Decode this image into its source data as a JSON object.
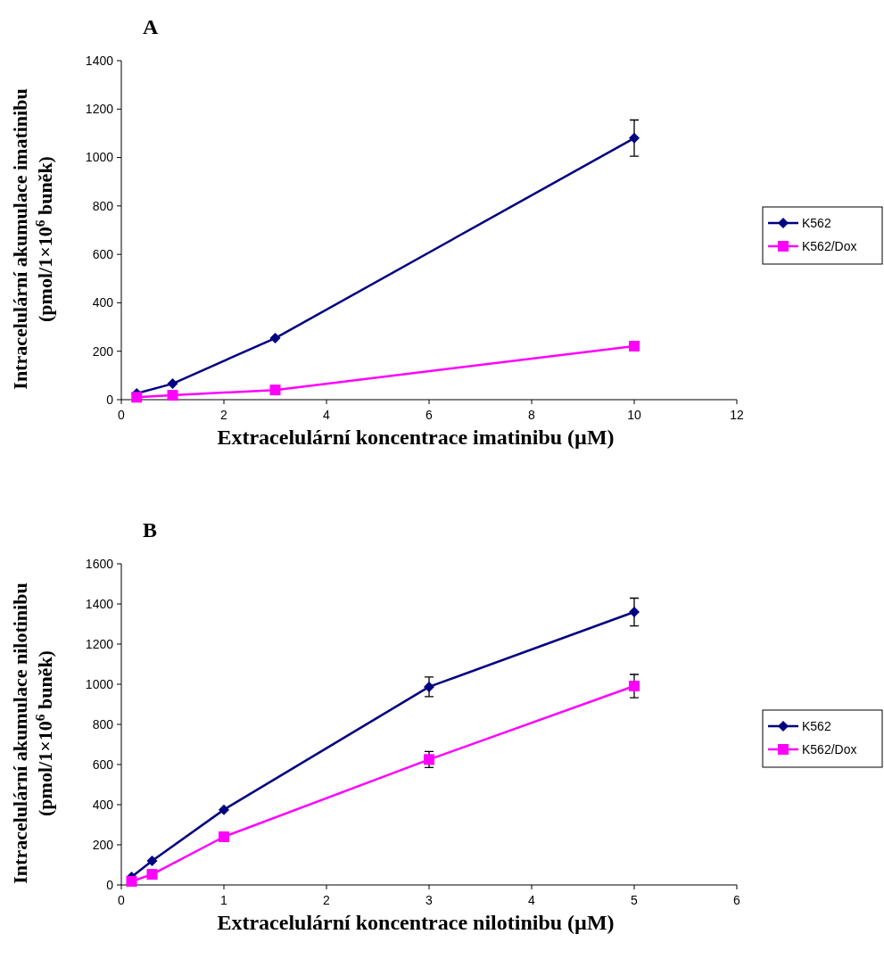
{
  "chart_data": [
    {
      "type": "line",
      "title": "A",
      "xlabel": "Extracelulární koncentrace imatinibu (µM)",
      "ylabel": "Intracelulární akumulace  imatinibu\n(pmol/1×10$^{6}$ buněk)",
      "x": [
        0.3,
        1,
        3,
        10
      ],
      "xlim": [
        0,
        12
      ],
      "xticks": [
        0,
        2,
        4,
        6,
        8,
        10,
        12
      ],
      "ylim": [
        0,
        1400
      ],
      "yticks": [
        0,
        200,
        400,
        600,
        800,
        1000,
        1200,
        1400
      ],
      "grid": false,
      "legend": "right",
      "series": [
        {
          "name": "K562",
          "color": "#000080",
          "marker": "diamond",
          "values": [
            26,
            66,
            254,
            1080
          ],
          "errors": [
            null,
            null,
            null,
            75
          ]
        },
        {
          "name": "K562/Dox",
          "color": "#ff00ff",
          "marker": "square",
          "values": [
            10,
            18,
            40,
            221
          ]
        }
      ]
    },
    {
      "type": "line",
      "title": "B",
      "xlabel": "Extracelulární koncentrace nilotinibu (µM)",
      "ylabel": "Intracelulární akumulace  nilotinibu\n(pmol/1×10$^{6}$ buněk)",
      "x": [
        0.1,
        0.3,
        1,
        3,
        5
      ],
      "xlim": [
        0,
        6
      ],
      "xticks": [
        0,
        1,
        2,
        3,
        4,
        5,
        6
      ],
      "ylim": [
        0,
        1600
      ],
      "yticks": [
        0,
        200,
        400,
        600,
        800,
        1000,
        1200,
        1400,
        1600
      ],
      "grid": false,
      "legend": "right",
      "series": [
        {
          "name": "K562",
          "color": "#000080",
          "marker": "diamond",
          "values": [
            40,
            120,
            375,
            987,
            1360
          ],
          "errors": [
            null,
            null,
            null,
            49,
            69
          ]
        },
        {
          "name": "K562/Dox",
          "color": "#ff00ff",
          "marker": "square",
          "values": [
            18,
            53,
            240,
            625,
            991
          ],
          "errors": [
            null,
            null,
            null,
            40,
            58
          ]
        }
      ]
    }
  ]
}
